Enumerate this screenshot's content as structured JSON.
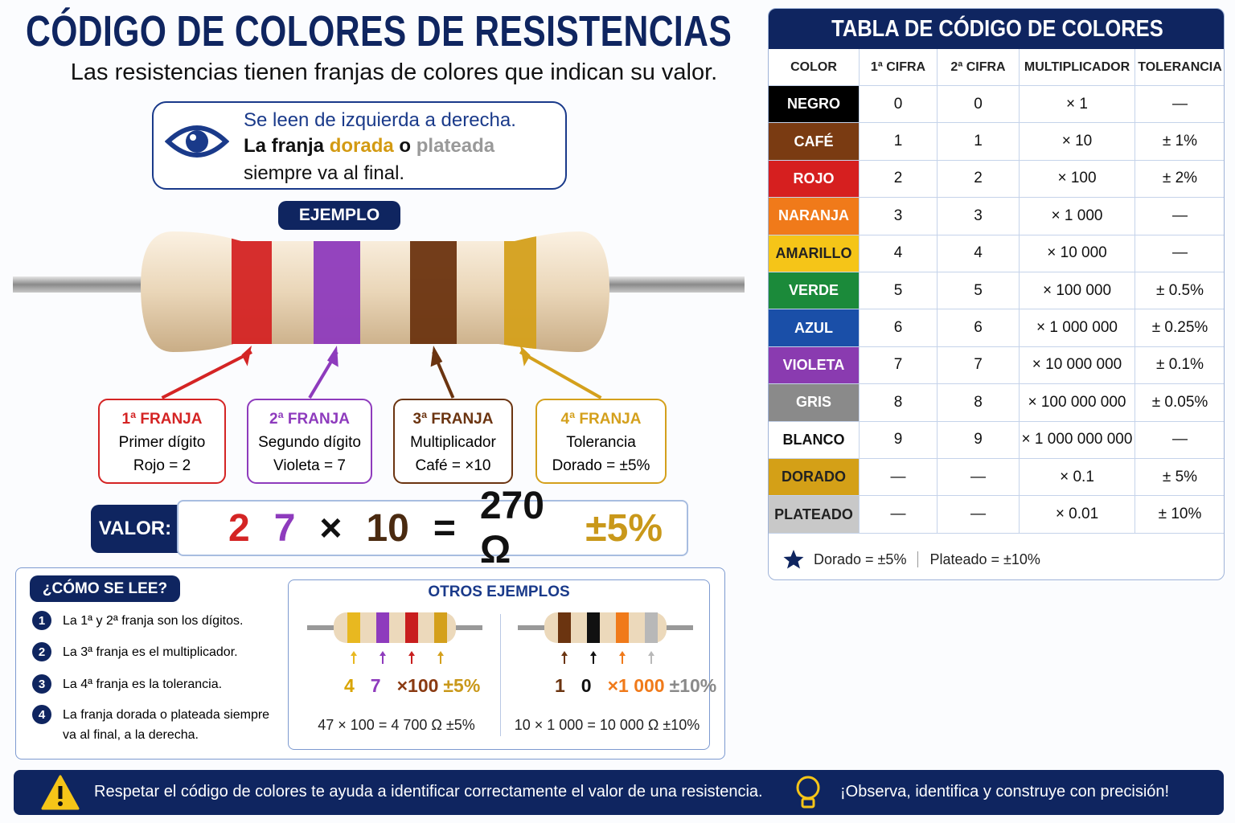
{
  "header": {
    "title": "CÓDIGO DE COLORES DE RESISTENCIAS",
    "subtitle": "Las resistencias tienen franjas de colores que indican su valor."
  },
  "note": {
    "line1": "Se leen de izquierda a derecha.",
    "line2": [
      "La franja",
      "dorada",
      "o",
      "plateada"
    ],
    "line3": "siempre va al final."
  },
  "example": {
    "label": "EJEMPLO",
    "bands": [
      {
        "title": "1ª FRANJA",
        "desc": "Primer dígito",
        "value": "Rojo = 2",
        "color": "#d42424"
      },
      {
        "title": "2ª FRANJA",
        "desc": "Segundo dígito",
        "value": "Violeta = 7",
        "color": "#8e3bbd"
      },
      {
        "title": "3ª FRANJA",
        "desc": "Multiplicador",
        "value": "Café = ×10",
        "color": "#6b3410"
      },
      {
        "title": "4ª FRANJA",
        "desc": "Tolerancia",
        "value": "Dorado = ±5%",
        "color": "#d4a01c"
      }
    ]
  },
  "valor": {
    "label": "VALOR:",
    "parts": [
      {
        "text": "2",
        "color": "#d42424"
      },
      {
        "text": "7",
        "color": "#8e3bbd"
      },
      {
        "text": "×",
        "color": "#111111"
      },
      {
        "text": "10",
        "color": "#4a2a10"
      },
      {
        "text": "=",
        "color": "#111111"
      },
      {
        "text": "270 Ω",
        "color": "#111111"
      },
      {
        "text": "±5%",
        "color": "#c9981a"
      }
    ]
  },
  "how_to": {
    "title": "¿CÓMO SE LEE?",
    "steps": [
      {
        "n": 1,
        "text": [
          "La 1ª y 2ª franja son los dígitos."
        ]
      },
      {
        "n": 2,
        "text": [
          "La 3ª franja es el multiplicador."
        ]
      },
      {
        "n": 3,
        "text": [
          "La 4ª franja es la tolerancia."
        ]
      },
      {
        "n": 4,
        "text": [
          "La franja dorada o plateada siempre",
          "va al final, a la derecha."
        ]
      }
    ]
  },
  "other_examples": {
    "title": "OTROS EJEMPLOS",
    "items": [
      {
        "bands": [
          "#e8b820",
          "#8e3bbd",
          "#c81e1e",
          "#d4a01c"
        ],
        "parts": [
          {
            "text": "4",
            "color": "#d9a400"
          },
          {
            "text": "7",
            "color": "#8e3bbd"
          },
          {
            "text": "×100",
            "color": "#8a3a12"
          },
          {
            "text": "±5%",
            "color": "#c9981a"
          }
        ],
        "formula": "47 × 100 = 4 700 Ω ±5%"
      },
      {
        "bands": [
          "#6b3410",
          "#111111",
          "#f07a1a",
          "#b8b8b8"
        ],
        "parts": [
          {
            "text": "1",
            "color": "#6b3410"
          },
          {
            "text": "0",
            "color": "#111111"
          },
          {
            "text": "×1 000",
            "color": "#f07a1a"
          },
          {
            "text": "±10%",
            "color": "#8a8a8a"
          }
        ],
        "formula": "10 × 1 000 = 10 000 Ω ±10%"
      }
    ]
  },
  "table": {
    "title": "TABLA DE CÓDIGO DE COLORES",
    "columns": [
      "COLOR",
      "1ª CIFRA",
      "2ª CIFRA",
      "MULTIPLICADOR",
      "TOLERANCIA"
    ],
    "rows": [
      {
        "cells": [
          "NEGRO",
          "0",
          "0",
          "× 1",
          "—"
        ],
        "color": "#000000",
        "text_color": "#ffffff"
      },
      {
        "cells": [
          "CAFÉ",
          "1",
          "1",
          "× 10",
          "± 1%"
        ],
        "color": "#7a3b12",
        "text_color": "#ffffff"
      },
      {
        "cells": [
          "ROJO",
          "2",
          "2",
          "× 100",
          "± 2%"
        ],
        "color": "#d61f1f",
        "text_color": "#ffffff"
      },
      {
        "cells": [
          "NARANJA",
          "3",
          "3",
          "× 1 000",
          "—"
        ],
        "color": "#f07a1a",
        "text_color": "#ffffff"
      },
      {
        "cells": [
          "AMARILLO",
          "4",
          "4",
          "× 10 000",
          "—"
        ],
        "color": "#f5c518",
        "text_color": "#222222"
      },
      {
        "cells": [
          "VERDE",
          "5",
          "5",
          "× 100 000",
          "± 0.5%"
        ],
        "color": "#1b8a3a",
        "text_color": "#ffffff"
      },
      {
        "cells": [
          "AZUL",
          "6",
          "6",
          "× 1 000 000",
          "± 0.25%"
        ],
        "color": "#1a4fa8",
        "text_color": "#ffffff"
      },
      {
        "cells": [
          "VIOLETA",
          "7",
          "7",
          "× 10 000 000",
          "± 0.1%"
        ],
        "color": "#8a3bb0",
        "text_color": "#ffffff"
      },
      {
        "cells": [
          "GRIS",
          "8",
          "8",
          "× 100 000 000",
          "± 0.05%"
        ],
        "color": "#8a8a8a",
        "text_color": "#ffffff"
      },
      {
        "cells": [
          "BLANCO",
          "9",
          "9",
          "× 1 000 000 000",
          "—"
        ],
        "color": "#ffffff",
        "text_color": "#111111"
      },
      {
        "cells": [
          "DORADO",
          "—",
          "—",
          "× 0.1",
          "± 5%"
        ],
        "color": "#d4a017",
        "text_color": "#222222"
      },
      {
        "cells": [
          "PLATEADO",
          "—",
          "—",
          "× 0.01",
          "± 10%"
        ],
        "color": "#c8c8c8",
        "text_color": "#222222"
      }
    ],
    "footnote": [
      "Dorado = ±5%",
      "Plateado = ±10%"
    ]
  },
  "footer": {
    "left": "Respetar el código de colores te ayuda a identificar correctamente el valor de una resistencia.",
    "right": "¡Observa, identifica y construye con precisión!"
  }
}
